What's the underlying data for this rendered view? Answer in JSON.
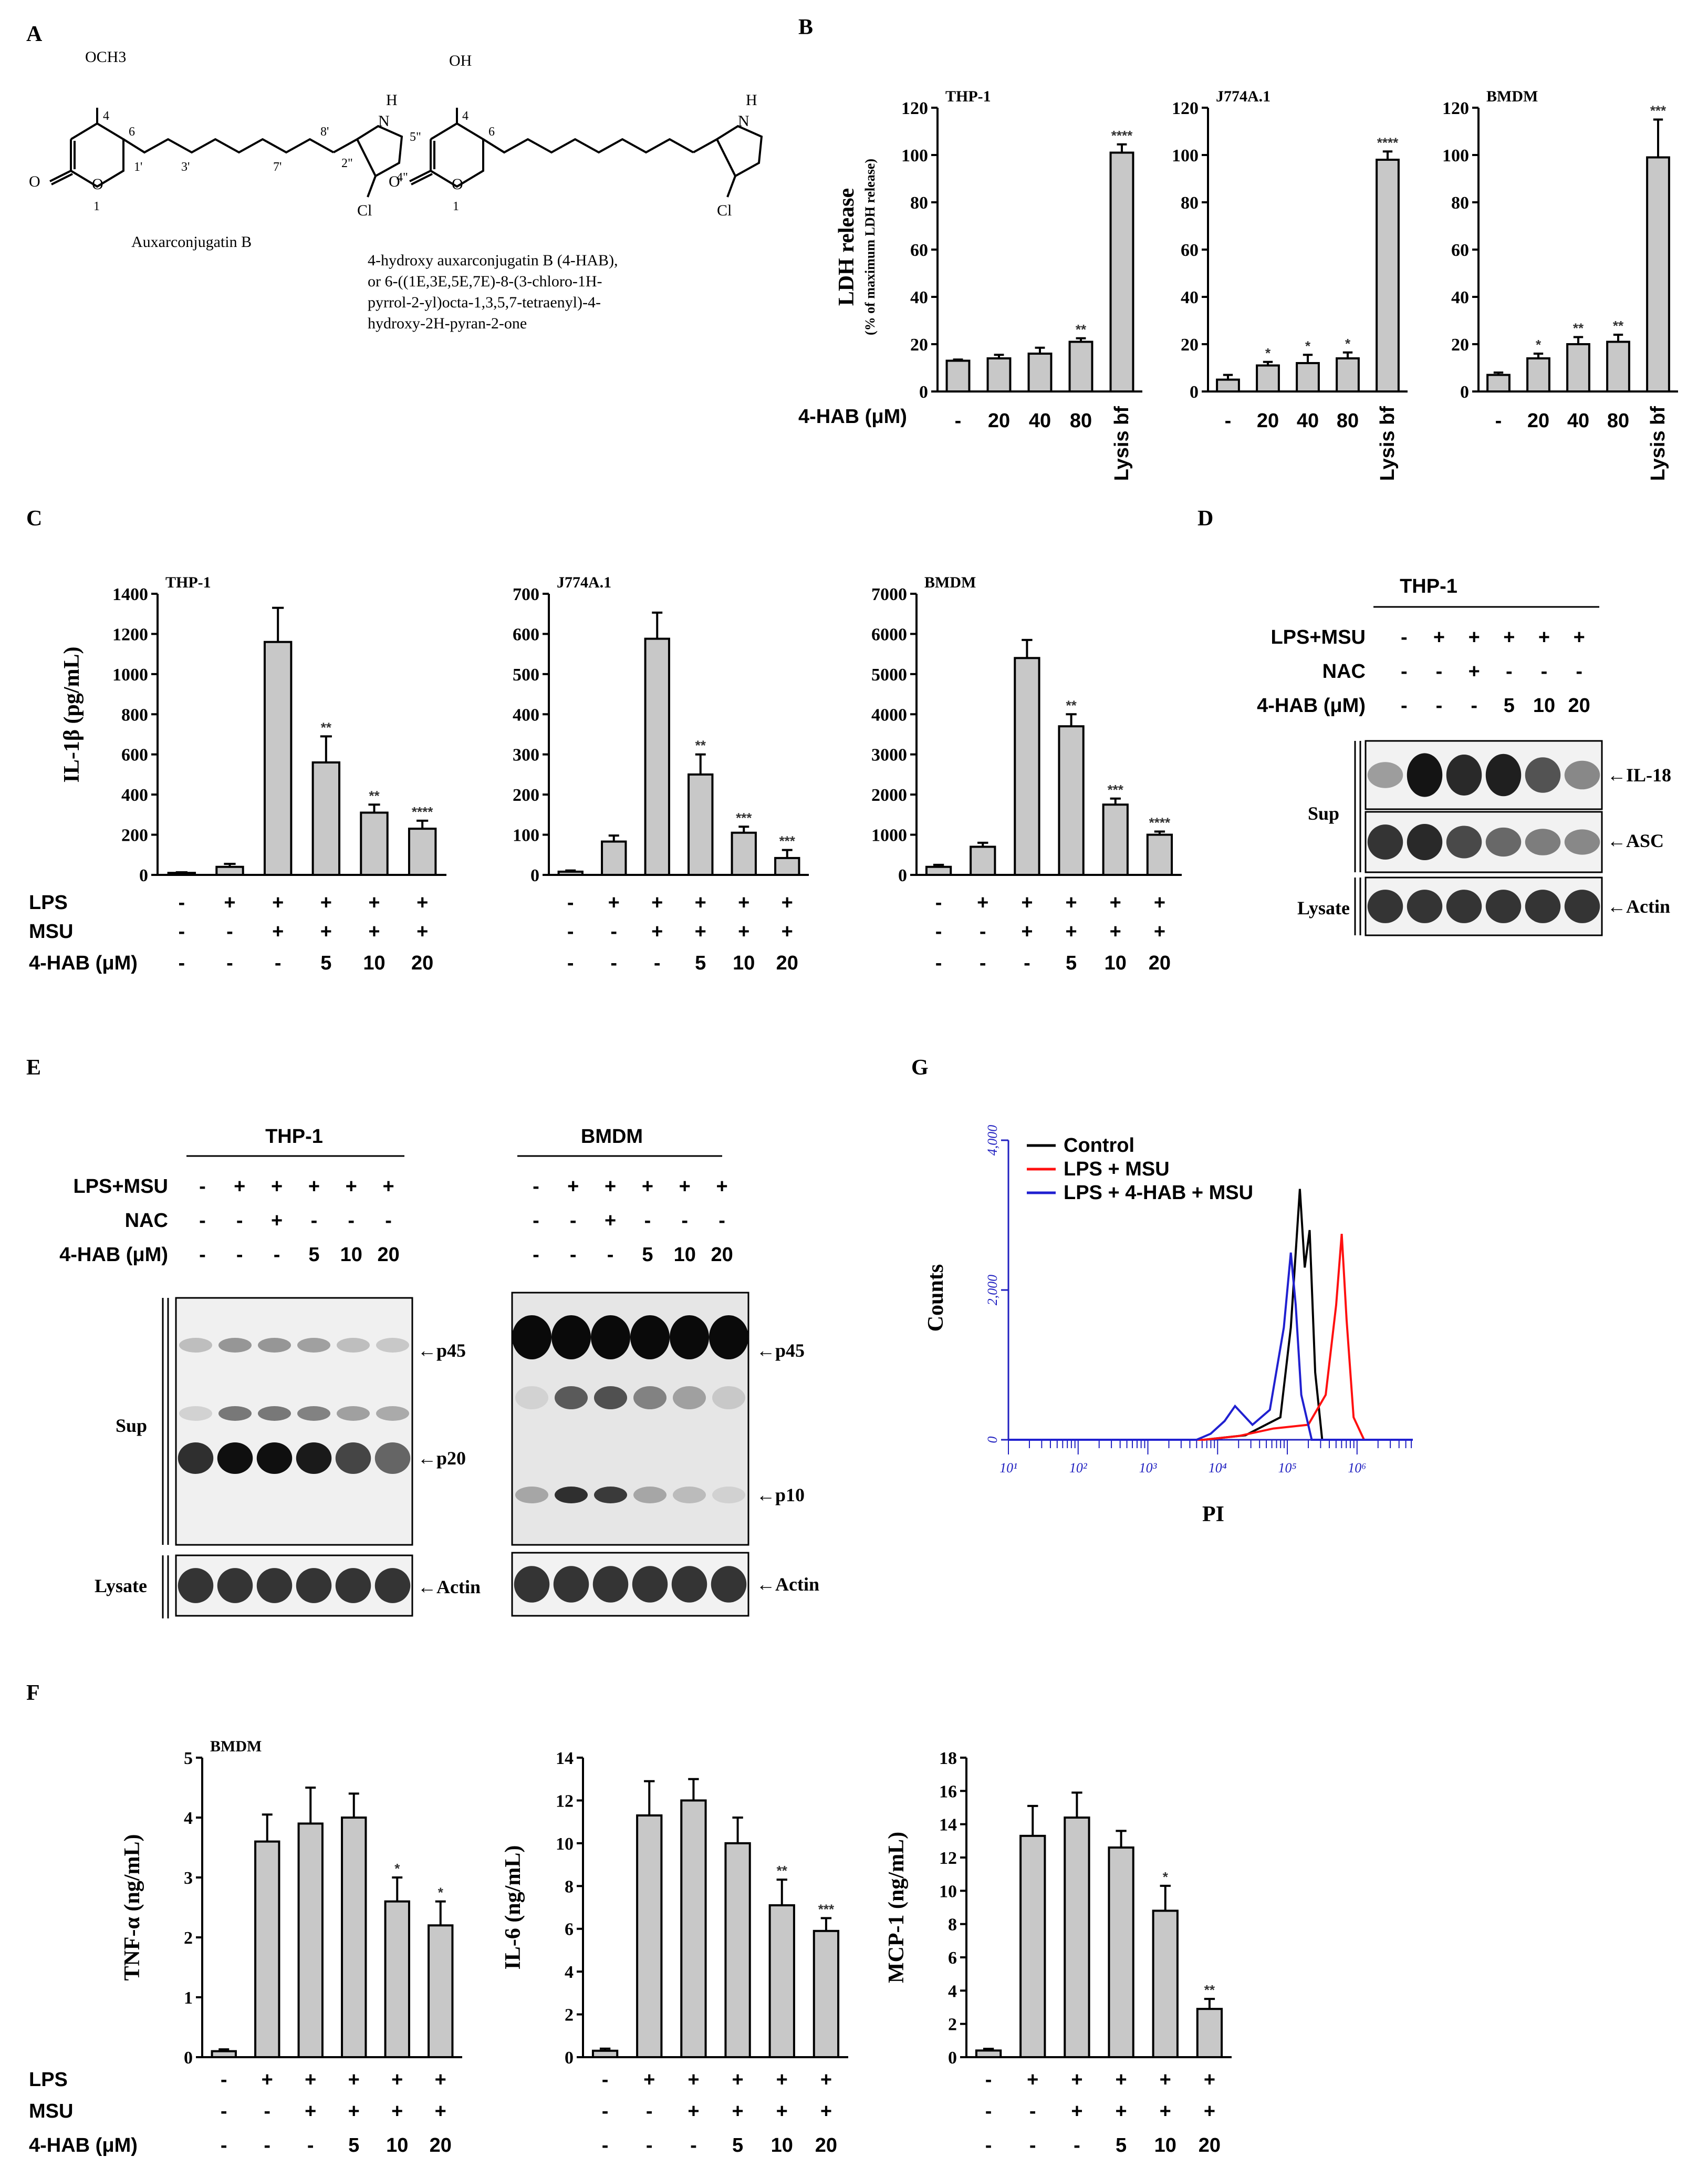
{
  "panels": {
    "A": {
      "letter": "A",
      "compound1": {
        "name": "Auxarconjugatin B",
        "atoms": [
          "OCH3",
          "4",
          "O",
          "O",
          "6",
          "1",
          "1'",
          "3'",
          "7'",
          "8'",
          "2\"",
          "H",
          "N",
          "5\"",
          "4\"",
          "Cl"
        ]
      },
      "compound2": {
        "atoms": [
          "OH",
          "4",
          "O",
          "O",
          "6",
          "1",
          "H",
          "N",
          "Cl"
        ],
        "description_lines": [
          "4-hydroxy auxarconjugatin B (4-HAB),",
          "or 6-((1E,3E,5E,7E)-8-(3-chloro-1H-",
          "pyrrol-2-yl)octa-1,3,5,7-tetraenyl)-4-",
          "hydroxy-2H-pyran-2-one"
        ]
      }
    },
    "B": {
      "letter": "B",
      "ylabel": "LDH release",
      "ylabel_sub": "(% of maximum LDH release)",
      "row_label": "4-HAB (μM)",
      "x_labels": [
        "-",
        "20",
        "40",
        "80",
        "Lysis bf"
      ]
    },
    "C": {
      "letter": "C",
      "ylabel": "IL-1β (pg/mL)",
      "rows": [
        {
          "label": "LPS",
          "signs": [
            "-",
            "+",
            "+",
            "+",
            "+",
            "+"
          ]
        },
        {
          "label": "MSU",
          "signs": [
            "-",
            "-",
            "+",
            "+",
            "+",
            "+"
          ]
        },
        {
          "label": "4-HAB (μM)",
          "signs": [
            "-",
            "-",
            "-",
            "5",
            "10",
            "20"
          ]
        }
      ]
    },
    "D": {
      "letter": "D",
      "cell": "THP-1",
      "rows": [
        {
          "label": "LPS+MSU",
          "signs": [
            "-",
            "+",
            "+",
            "+",
            "+",
            "+"
          ]
        },
        {
          "label": "NAC",
          "signs": [
            "-",
            "-",
            "+",
            "-",
            "-",
            "-"
          ]
        },
        {
          "label": "4-HAB (μM)",
          "signs": [
            "-",
            "-",
            "-",
            "5",
            "10",
            "20"
          ]
        }
      ],
      "group_sup": "Sup",
      "group_lysate": "Lysate",
      "bands": [
        "IL-18",
        "ASC",
        "Actin"
      ]
    },
    "E": {
      "letter": "E",
      "left_cell": "THP-1",
      "right_cell": "BMDM",
      "rows": [
        {
          "label": "LPS+MSU",
          "signs": [
            "-",
            "+",
            "+",
            "+",
            "+",
            "+"
          ]
        },
        {
          "label": "NAC",
          "signs": [
            "-",
            "-",
            "+",
            "-",
            "-",
            "-"
          ]
        },
        {
          "label": "4-HAB (μM)",
          "signs": [
            "-",
            "-",
            "-",
            "5",
            "10",
            "20"
          ]
        }
      ],
      "group_sup": "Sup",
      "group_lysate": "Lysate",
      "left_bands": [
        "p45",
        "p20",
        "Actin"
      ],
      "right_bands": [
        "p45",
        "p10",
        "Actin"
      ]
    },
    "F": {
      "letter": "F",
      "rows": [
        {
          "label": "LPS",
          "signs": [
            "-",
            "+",
            "+",
            "+",
            "+",
            "+"
          ]
        },
        {
          "label": "MSU",
          "signs": [
            "-",
            "-",
            "+",
            "+",
            "+",
            "+"
          ]
        },
        {
          "label": "4-HAB (μM)",
          "signs": [
            "-",
            "-",
            "-",
            "5",
            "10",
            "20"
          ]
        }
      ]
    },
    "G": {
      "letter": "G",
      "xlabel": "PI",
      "ylabel": "Counts",
      "yticks": [
        "0",
        "2,000",
        "4,000"
      ],
      "xticks": [
        "10^1",
        "10^2",
        "10^3",
        "10^4",
        "10^5",
        "10^6"
      ],
      "legend": [
        {
          "label": "Control",
          "color": "#000000"
        },
        {
          "label": "LPS + MSU",
          "color": "#ff1010"
        },
        {
          "label": "LPS + 4-HAB + MSU",
          "color": "#2020d0"
        }
      ]
    }
  },
  "chart_data": [
    {
      "id": "B-THP-1",
      "type": "bar",
      "title": "THP-1",
      "ylim": [
        0,
        120
      ],
      "yticks": [
        0,
        20,
        40,
        60,
        80,
        100,
        120
      ],
      "categories": [
        "-",
        "20",
        "40",
        "80",
        "Lysis bf"
      ],
      "values": [
        13,
        14,
        16,
        21,
        101
      ],
      "errors": [
        0.5,
        1.5,
        2.5,
        1.5,
        3.5
      ],
      "stars": [
        "",
        "",
        "",
        "**",
        "****"
      ]
    },
    {
      "id": "B-J774A.1",
      "type": "bar",
      "title": "J774A.1",
      "ylim": [
        0,
        120
      ],
      "yticks": [
        0,
        20,
        40,
        60,
        80,
        100,
        120
      ],
      "categories": [
        "-",
        "20",
        "40",
        "80",
        "Lysis bf"
      ],
      "values": [
        5,
        11,
        12,
        14,
        98
      ],
      "errors": [
        2,
        1.5,
        3.5,
        2.5,
        3.5
      ],
      "stars": [
        "",
        "*",
        "*",
        "*",
        "****"
      ]
    },
    {
      "id": "B-BMDM",
      "type": "bar",
      "title": "BMDM",
      "ylim": [
        0,
        120
      ],
      "yticks": [
        0,
        20,
        40,
        60,
        80,
        100,
        120
      ],
      "categories": [
        "-",
        "20",
        "40",
        "80",
        "Lysis bf"
      ],
      "values": [
        7,
        14,
        20,
        21,
        99
      ],
      "errors": [
        1,
        2,
        3,
        3,
        16
      ],
      "stars": [
        "",
        "*",
        "**",
        "**",
        "***"
      ]
    },
    {
      "id": "C-THP-1",
      "type": "bar",
      "title": "THP-1",
      "ylim": [
        0,
        1400
      ],
      "yticks": [
        0,
        200,
        400,
        600,
        800,
        1000,
        1200,
        1400
      ],
      "values": [
        10,
        40,
        1160,
        560,
        310,
        230
      ],
      "errors": [
        3,
        15,
        170,
        130,
        40,
        40
      ],
      "stars": [
        "",
        "",
        "",
        "**",
        "**",
        "****"
      ]
    },
    {
      "id": "C-J774A.1",
      "type": "bar",
      "title": "J774A.1",
      "ylim": [
        0,
        700
      ],
      "yticks": [
        0,
        100,
        200,
        300,
        400,
        500,
        600,
        700
      ],
      "values": [
        8,
        83,
        588,
        250,
        105,
        42
      ],
      "errors": [
        3,
        15,
        65,
        50,
        15,
        20
      ],
      "stars": [
        "",
        "",
        "",
        "**",
        "***",
        "***"
      ]
    },
    {
      "id": "C-BMDM",
      "type": "bar",
      "title": "BMDM",
      "ylim": [
        0,
        7000
      ],
      "yticks": [
        0,
        1000,
        2000,
        3000,
        4000,
        5000,
        6000,
        7000
      ],
      "values": [
        200,
        700,
        5400,
        3700,
        1750,
        1000
      ],
      "errors": [
        50,
        100,
        450,
        300,
        150,
        80
      ],
      "stars": [
        "",
        "",
        "",
        "**",
        "***",
        "****"
      ]
    },
    {
      "id": "F-TNF",
      "type": "bar",
      "title": "BMDM",
      "ylabel": "TNF-α (ng/mL)",
      "ylim": [
        0,
        5
      ],
      "yticks": [
        0,
        1,
        2,
        3,
        4,
        5
      ],
      "values": [
        0.1,
        3.6,
        3.9,
        4.0,
        2.6,
        2.2
      ],
      "errors": [
        0.03,
        0.45,
        0.6,
        0.4,
        0.4,
        0.4
      ],
      "stars": [
        "",
        "",
        "",
        "",
        "*",
        "*"
      ]
    },
    {
      "id": "F-IL6",
      "type": "bar",
      "title": "",
      "ylabel": "IL-6 (ng/mL)",
      "ylim": [
        0,
        14
      ],
      "yticks": [
        0,
        2,
        4,
        6,
        8,
        10,
        12,
        14
      ],
      "values": [
        0.3,
        11.3,
        12.0,
        10.0,
        7.1,
        5.9
      ],
      "errors": [
        0.1,
        1.6,
        1.0,
        1.2,
        1.2,
        0.6
      ],
      "stars": [
        "",
        "",
        "",
        "",
        "**",
        "***"
      ]
    },
    {
      "id": "F-MCP1",
      "type": "bar",
      "title": "",
      "ylabel": "MCP-1 (ng/mL)",
      "ylim": [
        0,
        18
      ],
      "yticks": [
        0,
        2,
        4,
        6,
        8,
        10,
        12,
        14,
        16,
        18
      ],
      "values": [
        0.4,
        13.3,
        14.4,
        12.6,
        8.8,
        2.9
      ],
      "errors": [
        0.1,
        1.8,
        1.5,
        1.0,
        1.5,
        0.6
      ],
      "stars": [
        "",
        "",
        "",
        "",
        "*",
        "**"
      ]
    },
    {
      "id": "G-flow",
      "type": "line",
      "x_scale": "log10",
      "xlim": [
        1,
        6.8
      ],
      "ylim": [
        0,
        4000
      ],
      "series": [
        {
          "name": "Control",
          "x": [
            1,
            3.8,
            4.4,
            4.9,
            5.05,
            5.18,
            5.25,
            5.32,
            5.4,
            5.5,
            6.8
          ],
          "y": [
            0,
            0,
            60,
            300,
            1500,
            3350,
            2300,
            2800,
            900,
            0,
            0
          ]
        },
        {
          "name": "LPS + MSU",
          "x": [
            1,
            3.8,
            4.3,
            4.8,
            5.3,
            5.55,
            5.7,
            5.78,
            5.85,
            5.95,
            6.1,
            6.8
          ],
          "y": [
            0,
            0,
            50,
            150,
            200,
            600,
            1800,
            2750,
            1600,
            300,
            0,
            0
          ]
        },
        {
          "name": "LPS + 4-HAB + MSU",
          "x": [
            1,
            3.7,
            3.9,
            4.1,
            4.25,
            4.5,
            4.75,
            4.95,
            5.05,
            5.12,
            5.2,
            5.35,
            6.8
          ],
          "y": [
            0,
            0,
            80,
            250,
            450,
            200,
            400,
            1500,
            2500,
            1800,
            600,
            0,
            0
          ]
        }
      ]
    }
  ]
}
